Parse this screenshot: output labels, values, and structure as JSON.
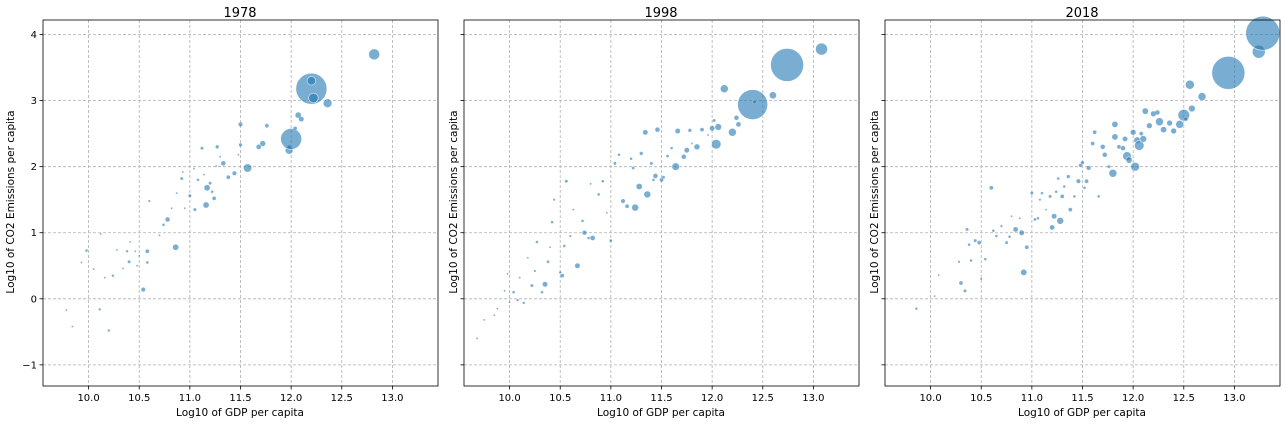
{
  "chart_data": [
    {
      "type": "scatter",
      "title": "1978",
      "xlabel": "Log10 of GDP per capita",
      "ylabel": "Log10 of CO2 Emissions per capita",
      "xlim": [
        9.55,
        13.45
      ],
      "ylim": [
        -1.32,
        4.22
      ],
      "xticks": [
        "10.0",
        "10.5",
        "11.0",
        "11.5",
        "12.0",
        "12.5",
        "13.0"
      ],
      "yticks": [
        "−1",
        "0",
        "1",
        "2",
        "3",
        "4"
      ],
      "grid": true,
      "color": "#1f77b4",
      "points": [
        [
          9.78,
          -0.17,
          1
        ],
        [
          9.84,
          -0.42,
          1
        ],
        [
          9.93,
          0.55,
          1
        ],
        [
          9.98,
          0.73,
          1.4
        ],
        [
          10.05,
          0.45,
          1
        ],
        [
          10.11,
          -0.16,
          1.3
        ],
        [
          10.12,
          0.98,
          1
        ],
        [
          10.16,
          0.32,
          1
        ],
        [
          10.2,
          -0.48,
          1.3
        ],
        [
          10.24,
          0.35,
          1.3
        ],
        [
          10.28,
          0.74,
          1
        ],
        [
          10.34,
          0.46,
          1
        ],
        [
          10.38,
          0.72,
          1.3
        ],
        [
          10.4,
          0.56,
          1.6
        ],
        [
          10.41,
          0.86,
          1
        ],
        [
          10.46,
          0.72,
          1
        ],
        [
          10.48,
          0.5,
          1
        ],
        [
          10.5,
          0.65,
          1
        ],
        [
          10.54,
          0.14,
          2.2
        ],
        [
          10.58,
          0.72,
          2
        ],
        [
          10.58,
          0.55,
          1.4
        ],
        [
          10.6,
          1.48,
          1.2
        ],
        [
          10.7,
          0.96,
          1
        ],
        [
          10.74,
          1.12,
          1.4
        ],
        [
          10.78,
          1.2,
          2.4
        ],
        [
          10.82,
          1.37,
          1
        ],
        [
          10.86,
          0.78,
          3
        ],
        [
          10.87,
          1.6,
          1
        ],
        [
          10.92,
          1.82,
          1.6
        ],
        [
          10.93,
          1.92,
          1
        ],
        [
          10.95,
          1.37,
          1
        ],
        [
          11.0,
          1.56,
          1.6
        ],
        [
          11.04,
          1.97,
          1
        ],
        [
          11.05,
          1.35,
          1.6
        ],
        [
          11.08,
          1.8,
          1.4
        ],
        [
          11.12,
          2.28,
          1.6
        ],
        [
          11.14,
          1.88,
          1
        ],
        [
          11.16,
          1.42,
          3
        ],
        [
          11.17,
          1.68,
          3
        ],
        [
          11.2,
          1.75,
          1.6
        ],
        [
          11.22,
          1.62,
          1.4
        ],
        [
          11.24,
          1.52,
          2
        ],
        [
          11.26,
          2.01,
          1
        ],
        [
          11.27,
          2.3,
          1.8
        ],
        [
          11.3,
          2.15,
          1
        ],
        [
          11.33,
          2.05,
          2.4
        ],
        [
          11.38,
          1.84,
          2
        ],
        [
          11.44,
          1.9,
          2.2
        ],
        [
          11.48,
          2.18,
          1
        ],
        [
          11.5,
          2.33,
          1.8
        ],
        [
          11.5,
          2.64,
          2.2
        ],
        [
          11.57,
          1.98,
          4.2
        ],
        [
          11.68,
          2.3,
          2.5
        ],
        [
          11.72,
          2.35,
          2.8
        ],
        [
          11.76,
          2.62,
          2
        ],
        [
          11.98,
          2.25,
          4
        ],
        [
          11.98,
          2.3,
          1.8
        ],
        [
          12.0,
          2.42,
          10.5
        ],
        [
          12.04,
          2.58,
          2
        ],
        [
          12.07,
          2.78,
          3
        ],
        [
          12.1,
          2.72,
          2.6
        ],
        [
          12.2,
          3.18,
          15.5
        ],
        [
          12.2,
          3.3,
          4.3
        ],
        [
          12.22,
          3.04,
          4.8
        ],
        [
          12.36,
          2.96,
          4.4
        ],
        [
          12.82,
          3.7,
          5.5
        ]
      ]
    },
    {
      "type": "scatter",
      "title": "1998",
      "xlabel": "Log10 of GDP per capita",
      "ylabel": "Log10 of CO2 Emissions per capita",
      "xlim": [
        9.55,
        13.45
      ],
      "ylim": [
        -1.32,
        4.22
      ],
      "xticks": [
        "10.0",
        "10.5",
        "11.0",
        "11.5",
        "12.0",
        "12.5",
        "13.0"
      ],
      "yticks": [
        "−1",
        "0",
        "1",
        "2",
        "3",
        "4"
      ],
      "grid": true,
      "color": "#1f77b4",
      "points": [
        [
          9.68,
          -0.6,
          1
        ],
        [
          9.75,
          -0.32,
          1
        ],
        [
          9.85,
          -0.25,
          1
        ],
        [
          9.88,
          -0.15,
          1
        ],
        [
          9.95,
          0.12,
          1
        ],
        [
          9.98,
          0.38,
          1
        ],
        [
          10.0,
          -0.05,
          1
        ],
        [
          10.04,
          0.1,
          1.4
        ],
        [
          10.08,
          -0.02,
          1.3
        ],
        [
          10.1,
          0.32,
          1
        ],
        [
          10.14,
          -0.06,
          1.3
        ],
        [
          10.18,
          0.62,
          1
        ],
        [
          10.22,
          0.2,
          1.6
        ],
        [
          10.25,
          0.42,
          1.2
        ],
        [
          10.27,
          0.86,
          1.4
        ],
        [
          10.32,
          0.1,
          1.4
        ],
        [
          10.35,
          0.22,
          2.6
        ],
        [
          10.38,
          0.56,
          1.5
        ],
        [
          10.4,
          0.78,
          1
        ],
        [
          10.42,
          1.16,
          1.4
        ],
        [
          10.44,
          1.5,
          1.2
        ],
        [
          10.5,
          0.4,
          1.3
        ],
        [
          10.52,
          0.35,
          2
        ],
        [
          10.54,
          0.8,
          1.4
        ],
        [
          10.56,
          1.78,
          1.6
        ],
        [
          10.6,
          0.95,
          1.2
        ],
        [
          10.63,
          1.35,
          1
        ],
        [
          10.67,
          0.5,
          2.6
        ],
        [
          10.72,
          1.18,
          1.4
        ],
        [
          10.74,
          1.0,
          2.3
        ],
        [
          10.78,
          0.92,
          1.4
        ],
        [
          10.8,
          1.74,
          1
        ],
        [
          10.82,
          0.92,
          2.5
        ],
        [
          10.88,
          1.58,
          1.4
        ],
        [
          10.92,
          1.78,
          1.4
        ],
        [
          10.96,
          1.3,
          1
        ],
        [
          11.0,
          0.88,
          1.5
        ],
        [
          11.04,
          2.05,
          1.6
        ],
        [
          11.08,
          2.18,
          1.4
        ],
        [
          11.12,
          1.48,
          2.2
        ],
        [
          11.16,
          1.4,
          2
        ],
        [
          11.2,
          2.12,
          1.4
        ],
        [
          11.22,
          1.98,
          1.5
        ],
        [
          11.24,
          1.38,
          3.5
        ],
        [
          11.28,
          1.7,
          3
        ],
        [
          11.3,
          2.2,
          1.8
        ],
        [
          11.34,
          2.52,
          2.6
        ],
        [
          11.36,
          1.58,
          3.5
        ],
        [
          11.4,
          2.05,
          1.6
        ],
        [
          11.42,
          1.8,
          1.4
        ],
        [
          11.44,
          1.86,
          2.4
        ],
        [
          11.46,
          2.56,
          2.4
        ],
        [
          11.5,
          1.8,
          2
        ],
        [
          11.52,
          1.84,
          1.6
        ],
        [
          11.56,
          2.16,
          1.5
        ],
        [
          11.6,
          2.28,
          1.4
        ],
        [
          11.64,
          2.0,
          3.8
        ],
        [
          11.66,
          2.54,
          2.6
        ],
        [
          11.72,
          2.15,
          2.4
        ],
        [
          11.75,
          2.25,
          2.6
        ],
        [
          11.78,
          2.55,
          1.8
        ],
        [
          11.8,
          2.35,
          1
        ],
        [
          11.85,
          2.3,
          2.8
        ],
        [
          11.9,
          2.56,
          2
        ],
        [
          11.96,
          2.48,
          1
        ],
        [
          12.0,
          2.58,
          2.6
        ],
        [
          12.02,
          2.7,
          1.6
        ],
        [
          12.04,
          2.34,
          4.8
        ],
        [
          12.06,
          2.6,
          3.4
        ],
        [
          12.12,
          3.18,
          4
        ],
        [
          12.2,
          2.52,
          4
        ],
        [
          12.24,
          2.74,
          2.4
        ],
        [
          12.26,
          2.64,
          2.5
        ],
        [
          12.4,
          2.94,
          15
        ],
        [
          12.42,
          2.98,
          2
        ],
        [
          12.6,
          3.08,
          3.6
        ],
        [
          12.74,
          3.54,
          16.5
        ],
        [
          13.08,
          3.78,
          6
        ]
      ]
    },
    {
      "type": "scatter",
      "title": "2018",
      "xlabel": "Log10 of GDP per capita",
      "ylabel": "Log10 of CO2 Emissions per capita",
      "xlim": [
        9.55,
        13.45
      ],
      "ylim": [
        -1.32,
        4.22
      ],
      "xticks": [
        "10.0",
        "10.5",
        "11.0",
        "11.5",
        "12.0",
        "12.5",
        "13.0"
      ],
      "yticks": [
        "−1",
        "0",
        "1",
        "2",
        "3",
        "4"
      ],
      "grid": true,
      "color": "#1f77b4",
      "points": [
        [
          9.86,
          -0.15,
          1.3
        ],
        [
          10.04,
          0.04,
          1
        ],
        [
          10.08,
          0.36,
          1
        ],
        [
          10.28,
          0.56,
          1.2
        ],
        [
          10.3,
          0.24,
          2
        ],
        [
          10.34,
          0.12,
          1.6
        ],
        [
          10.36,
          1.05,
          1.6
        ],
        [
          10.38,
          0.82,
          1.4
        ],
        [
          10.4,
          0.58,
          1.4
        ],
        [
          10.44,
          0.88,
          1.6
        ],
        [
          10.48,
          0.85,
          2
        ],
        [
          10.5,
          0.3,
          1.2
        ],
        [
          10.54,
          0.6,
          1.4
        ],
        [
          10.6,
          1.68,
          2
        ],
        [
          10.62,
          1.03,
          1.4
        ],
        [
          10.65,
          0.95,
          1.4
        ],
        [
          10.7,
          1.1,
          1.2
        ],
        [
          10.75,
          0.85,
          1.6
        ],
        [
          10.78,
          0.94,
          1.4
        ],
        [
          10.8,
          1.25,
          1
        ],
        [
          10.84,
          1.05,
          2.5
        ],
        [
          10.88,
          1.22,
          1
        ],
        [
          10.9,
          1.0,
          2.6
        ],
        [
          10.92,
          0.4,
          3.2
        ],
        [
          10.95,
          0.78,
          2
        ],
        [
          11.0,
          1.6,
          1.6
        ],
        [
          11.03,
          1.2,
          1.5
        ],
        [
          11.06,
          1.22,
          1.4
        ],
        [
          11.08,
          1.5,
          1.2
        ],
        [
          11.1,
          1.6,
          1.4
        ],
        [
          11.14,
          1.35,
          1
        ],
        [
          11.18,
          1.55,
          1.6
        ],
        [
          11.2,
          1.08,
          2.5
        ],
        [
          11.22,
          1.25,
          2.6
        ],
        [
          11.24,
          1.62,
          1.4
        ],
        [
          11.26,
          1.82,
          1.4
        ],
        [
          11.28,
          1.18,
          3.5
        ],
        [
          11.3,
          1.55,
          2
        ],
        [
          11.32,
          1.7,
          1.4
        ],
        [
          11.36,
          1.85,
          1.8
        ],
        [
          11.38,
          1.35,
          2
        ],
        [
          11.42,
          1.55,
          1.4
        ],
        [
          11.46,
          1.78,
          2.2
        ],
        [
          11.48,
          2.02,
          1.8
        ],
        [
          11.5,
          2.06,
          1.8
        ],
        [
          11.52,
          1.68,
          1.4
        ],
        [
          11.54,
          1.78,
          2
        ],
        [
          11.56,
          1.98,
          2.2
        ],
        [
          11.6,
          2.35,
          2
        ],
        [
          11.62,
          2.52,
          2
        ],
        [
          11.66,
          1.55,
          1.4
        ],
        [
          11.7,
          2.3,
          2.4
        ],
        [
          11.72,
          2.18,
          2.4
        ],
        [
          11.76,
          2.0,
          1.6
        ],
        [
          11.8,
          1.9,
          4
        ],
        [
          11.82,
          2.45,
          3
        ],
        [
          11.82,
          2.64,
          3
        ],
        [
          11.86,
          2.3,
          2
        ],
        [
          11.9,
          2.28,
          2.4
        ],
        [
          11.92,
          2.42,
          2.6
        ],
        [
          11.94,
          2.16,
          4.4
        ],
        [
          11.96,
          2.1,
          3.2
        ],
        [
          12.0,
          2.52,
          2.8
        ],
        [
          12.02,
          2.0,
          4.4
        ],
        [
          12.04,
          2.4,
          3.4
        ],
        [
          12.06,
          2.32,
          4.8
        ],
        [
          12.08,
          2.5,
          2
        ],
        [
          12.1,
          2.42,
          3.4
        ],
        [
          12.12,
          2.84,
          3.2
        ],
        [
          12.16,
          2.62,
          2.8
        ],
        [
          12.2,
          2.8,
          2.8
        ],
        [
          12.24,
          2.82,
          2.4
        ],
        [
          12.26,
          2.68,
          4
        ],
        [
          12.3,
          2.56,
          3
        ],
        [
          12.36,
          2.66,
          2.8
        ],
        [
          12.4,
          2.54,
          2.8
        ],
        [
          12.46,
          2.64,
          4
        ],
        [
          12.5,
          2.78,
          5.8
        ],
        [
          12.52,
          2.72,
          2
        ],
        [
          12.56,
          3.24,
          4.5
        ],
        [
          12.58,
          2.88,
          3.4
        ],
        [
          12.68,
          3.06,
          4
        ],
        [
          12.94,
          3.42,
          16.5
        ],
        [
          13.24,
          3.74,
          6.5
        ],
        [
          13.28,
          4.02,
          17
        ]
      ]
    }
  ]
}
